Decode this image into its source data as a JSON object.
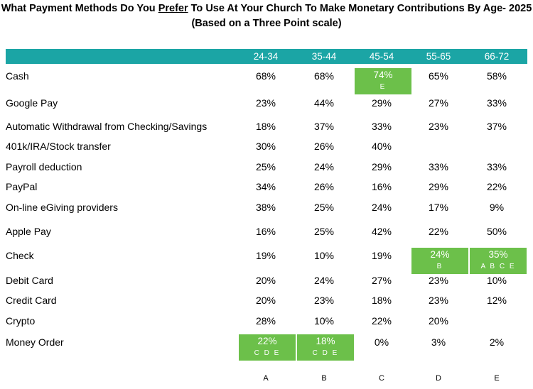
{
  "title": {
    "part1": "What Payment Methods Do You ",
    "emphasis": "Prefer",
    "part2": " To Use At Your Church To Make Monetary Contributions By Age- 2025",
    "subtitle": "(Based on a Three Point scale)"
  },
  "colors": {
    "header": "#1ba5a5",
    "highlight": "#6cc04a"
  },
  "chart_data": {
    "type": "table",
    "columns": [
      "24-34",
      "35-44",
      "45-54",
      "55-65",
      "66-72"
    ],
    "column_letters": [
      "A",
      "B",
      "C",
      "D",
      "E"
    ],
    "rows": [
      {
        "label": "Cash",
        "values": [
          "68%",
          "68%",
          "74%",
          "65%",
          "58%"
        ],
        "sig": [
          null,
          null,
          "E",
          null,
          null
        ]
      },
      {
        "label": "Google Pay",
        "values": [
          "23%",
          "44%",
          "29%",
          "27%",
          "33%"
        ],
        "sig": [
          null,
          null,
          null,
          null,
          null
        ]
      },
      {
        "label": "Automatic Withdrawal from Checking/Savings",
        "values": [
          "18%",
          "37%",
          "33%",
          "23%",
          "37%"
        ],
        "sig": [
          null,
          null,
          null,
          null,
          null
        ]
      },
      {
        "label": "401k/IRA/Stock transfer",
        "values": [
          "30%",
          "26%",
          "40%",
          "",
          ""
        ],
        "sig": [
          null,
          null,
          null,
          null,
          null
        ]
      },
      {
        "label": "Payroll deduction",
        "values": [
          "25%",
          "24%",
          "29%",
          "33%",
          "33%"
        ],
        "sig": [
          null,
          null,
          null,
          null,
          null
        ]
      },
      {
        "label": "PayPal",
        "values": [
          "34%",
          "26%",
          "16%",
          "29%",
          "22%"
        ],
        "sig": [
          null,
          null,
          null,
          null,
          null
        ]
      },
      {
        "label": "On-line eGiving providers",
        "values": [
          "38%",
          "25%",
          "24%",
          "17%",
          "9%"
        ],
        "sig": [
          null,
          null,
          null,
          null,
          null
        ]
      },
      {
        "label": "Apple Pay",
        "values": [
          "16%",
          "25%",
          "42%",
          "22%",
          "50%"
        ],
        "sig": [
          null,
          null,
          null,
          null,
          null
        ]
      },
      {
        "label": "Check",
        "values": [
          "19%",
          "10%",
          "19%",
          "24%",
          "35%"
        ],
        "sig": [
          null,
          null,
          null,
          "B",
          "A B C E"
        ]
      },
      {
        "label": "Debit Card",
        "values": [
          "20%",
          "24%",
          "27%",
          "23%",
          "10%"
        ],
        "sig": [
          null,
          null,
          null,
          null,
          null
        ]
      },
      {
        "label": "Credit Card",
        "values": [
          "20%",
          "23%",
          "18%",
          "23%",
          "12%"
        ],
        "sig": [
          null,
          null,
          null,
          null,
          null
        ]
      },
      {
        "label": "Crypto",
        "values": [
          "28%",
          "10%",
          "22%",
          "20%",
          ""
        ],
        "sig": [
          null,
          null,
          null,
          null,
          null
        ]
      },
      {
        "label": "Money Order",
        "values": [
          "22%",
          "18%",
          "0%",
          "3%",
          "2%"
        ],
        "sig": [
          "C D E",
          "C D E",
          null,
          null,
          null
        ]
      }
    ]
  }
}
